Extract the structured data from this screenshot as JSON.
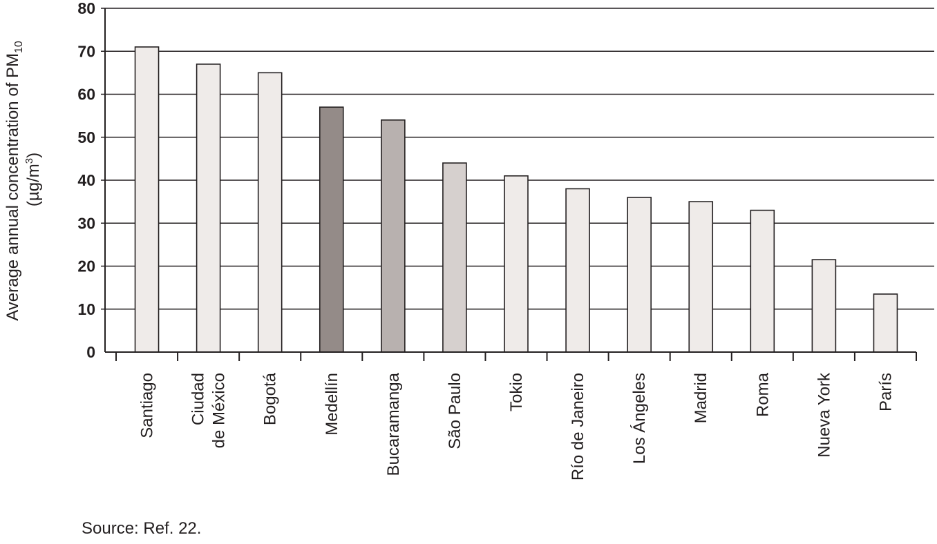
{
  "chart_data": {
    "type": "bar",
    "ylabel_line1": "Average annual concentration of PM",
    "ylabel_sub": "10",
    "ylabel_line2_pre": "(µg/m",
    "ylabel_sup": "3",
    "ylabel_line2_post": ")",
    "ylim": [
      0,
      80
    ],
    "yticks": [
      "0",
      "10",
      "20",
      "30",
      "40",
      "50",
      "60",
      "70",
      "80"
    ],
    "grid": true,
    "categories": [
      [
        "Santiago"
      ],
      [
        "Ciudad",
        "de México"
      ],
      [
        "Bogotá"
      ],
      [
        "Medellín"
      ],
      [
        "Bucaramanga"
      ],
      [
        "São Paulo"
      ],
      [
        "Tokio"
      ],
      [
        "Río de Janeiro"
      ],
      [
        "Los Ángeles"
      ],
      [
        "Madrid"
      ],
      [
        "Roma"
      ],
      [
        "Nueva York"
      ],
      [
        "París"
      ]
    ],
    "values": [
      71,
      67,
      65,
      57,
      54,
      44,
      41,
      38,
      36,
      35,
      33,
      21.5,
      13.5
    ],
    "colors": [
      "#efebe9",
      "#efebe9",
      "#efebe9",
      "#948b88",
      "#b8b1af",
      "#d6d0ce",
      "#efebe9",
      "#efebe9",
      "#efebe9",
      "#efebe9",
      "#efebe9",
      "#efebe9",
      "#efebe9"
    ],
    "source": "Source: Ref. 22."
  }
}
